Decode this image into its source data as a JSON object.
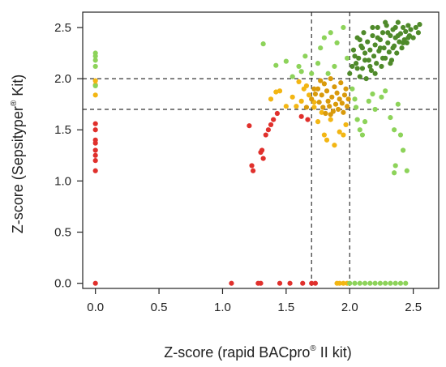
{
  "chart_data": {
    "type": "scatter",
    "xlabel": {
      "before": "Z-score (rapid BACpro",
      "sup": "®",
      "after": " II kit)"
    },
    "ylabel": {
      "before": "Z-score (Sepsityper",
      "sup": "®",
      "after": " Kit)"
    },
    "xlim": [
      -0.1,
      2.7
    ],
    "ylim": [
      -0.05,
      2.65
    ],
    "x_ticks": [
      0.0,
      0.5,
      1.0,
      1.5,
      2.0,
      2.5
    ],
    "x_tick_labels": [
      "0.0",
      "0.5",
      "1.0",
      "1.5",
      "2.0",
      "2.5"
    ],
    "y_ticks": [
      0.0,
      0.5,
      1.0,
      1.5,
      2.0,
      2.5
    ],
    "y_tick_labels": [
      "0.0",
      "0.5",
      "1.0",
      "1.5",
      "2.0",
      "2.5"
    ],
    "reference_lines": {
      "vertical": [
        1.7,
        2.0
      ],
      "horizontal": [
        1.7,
        2.0
      ],
      "style": "dashed"
    },
    "grid": false,
    "colors": {
      "red": "#e0302c",
      "orange": "#f3b613",
      "dark_orange": "#d99a0b",
      "light_green": "#8dd35a",
      "dark_green": "#4f8a2a"
    },
    "series": [
      {
        "color": "#e0302c",
        "points": [
          [
            0.0,
            1.56
          ],
          [
            0.0,
            1.5
          ],
          [
            0.0,
            1.4
          ],
          [
            0.0,
            1.37
          ],
          [
            0.0,
            1.3
          ],
          [
            0.0,
            1.25
          ],
          [
            0.0,
            1.2
          ],
          [
            0.0,
            1.1
          ],
          [
            0.0,
            0.0
          ],
          [
            1.07,
            0.0
          ],
          [
            1.21,
            1.54
          ],
          [
            1.23,
            1.15
          ],
          [
            1.24,
            1.1
          ],
          [
            1.28,
            0.0
          ],
          [
            1.3,
            1.28
          ],
          [
            1.3,
            0.0
          ],
          [
            1.31,
            1.3
          ],
          [
            1.32,
            1.22
          ],
          [
            1.34,
            1.45
          ],
          [
            1.36,
            1.5
          ],
          [
            1.38,
            1.55
          ],
          [
            1.4,
            1.6
          ],
          [
            1.43,
            1.66
          ],
          [
            1.45,
            0.0
          ],
          [
            1.53,
            0.0
          ],
          [
            1.62,
            1.63
          ],
          [
            1.63,
            0.0
          ],
          [
            1.67,
            1.6
          ],
          [
            1.7,
            0.0
          ],
          [
            1.73,
            0.0
          ]
        ]
      },
      {
        "color": "#f3b613",
        "points": [
          [
            0.0,
            1.98
          ],
          [
            0.0,
            1.94
          ],
          [
            0.0,
            1.84
          ],
          [
            1.38,
            1.8
          ],
          [
            1.42,
            1.87
          ],
          [
            1.45,
            1.88
          ],
          [
            1.5,
            1.73
          ],
          [
            1.55,
            1.82
          ],
          [
            1.58,
            1.73
          ],
          [
            1.6,
            1.97
          ],
          [
            1.62,
            1.78
          ],
          [
            1.64,
            1.9
          ],
          [
            1.66,
            1.93
          ],
          [
            1.68,
            1.84
          ],
          [
            1.72,
            1.77
          ],
          [
            1.72,
            1.72
          ],
          [
            1.75,
            1.58
          ],
          [
            1.78,
            1.67
          ],
          [
            1.8,
            1.45
          ],
          [
            1.82,
            1.4
          ],
          [
            1.85,
            1.6
          ],
          [
            1.88,
            1.35
          ],
          [
            1.92,
            1.48
          ],
          [
            1.95,
            1.45
          ],
          [
            1.97,
            1.55
          ],
          [
            1.9,
            0.0
          ],
          [
            1.92,
            0.0
          ],
          [
            1.95,
            0.0
          ],
          [
            1.98,
            0.0
          ]
        ]
      },
      {
        "color": "#d99a0b",
        "points": [
          [
            1.66,
            1.72
          ],
          [
            1.7,
            1.8
          ],
          [
            1.73,
            1.85
          ],
          [
            1.75,
            1.9
          ],
          [
            1.76,
            1.77
          ],
          [
            1.78,
            1.84
          ],
          [
            1.79,
            1.72
          ],
          [
            1.8,
            1.95
          ],
          [
            1.81,
            1.66
          ],
          [
            1.82,
            1.88
          ],
          [
            1.83,
            1.78
          ],
          [
            1.84,
            1.73
          ],
          [
            1.85,
            2.0
          ],
          [
            1.86,
            1.82
          ],
          [
            1.87,
            1.68
          ],
          [
            1.88,
            1.92
          ],
          [
            1.89,
            1.75
          ],
          [
            1.9,
            1.86
          ],
          [
            1.91,
            1.7
          ],
          [
            1.92,
            1.8
          ],
          [
            1.93,
            1.96
          ],
          [
            1.94,
            1.76
          ],
          [
            1.95,
            1.67
          ],
          [
            1.96,
            1.84
          ],
          [
            1.97,
            1.9
          ],
          [
            1.98,
            1.73
          ],
          [
            1.99,
            1.8
          ],
          [
            1.85,
            1.65
          ],
          [
            1.77,
            1.98
          ],
          [
            1.72,
            1.9
          ]
        ]
      },
      {
        "color": "#8dd35a",
        "points": [
          [
            0.0,
            2.25
          ],
          [
            0.0,
            2.22
          ],
          [
            0.0,
            2.18
          ],
          [
            0.0,
            2.12
          ],
          [
            0.0,
            1.93
          ],
          [
            1.32,
            2.34
          ],
          [
            1.42,
            2.13
          ],
          [
            1.5,
            2.17
          ],
          [
            1.55,
            2.02
          ],
          [
            1.6,
            2.12
          ],
          [
            1.62,
            2.07
          ],
          [
            1.65,
            2.22
          ],
          [
            1.7,
            2.05
          ],
          [
            1.75,
            2.15
          ],
          [
            1.77,
            2.3
          ],
          [
            1.8,
            2.4
          ],
          [
            1.85,
            2.45
          ],
          [
            1.9,
            2.35
          ],
          [
            1.95,
            2.5
          ],
          [
            1.98,
            2.2
          ],
          [
            1.83,
            2.05
          ],
          [
            1.88,
            2.12
          ],
          [
            2.02,
            1.9
          ],
          [
            2.04,
            1.8
          ],
          [
            2.05,
            1.72
          ],
          [
            2.06,
            1.6
          ],
          [
            2.08,
            1.5
          ],
          [
            2.1,
            1.45
          ],
          [
            2.12,
            1.58
          ],
          [
            2.15,
            1.78
          ],
          [
            2.18,
            1.85
          ],
          [
            2.2,
            1.7
          ],
          [
            2.25,
            1.82
          ],
          [
            2.28,
            1.88
          ],
          [
            2.32,
            1.62
          ],
          [
            2.35,
            1.5
          ],
          [
            2.38,
            1.75
          ],
          [
            2.4,
            1.45
          ],
          [
            2.42,
            1.3
          ],
          [
            2.45,
            1.1
          ],
          [
            2.35,
            1.08
          ],
          [
            2.36,
            1.15
          ],
          [
            2.0,
            0.0
          ],
          [
            2.04,
            0.0
          ],
          [
            2.08,
            0.0
          ],
          [
            2.12,
            0.0
          ],
          [
            2.16,
            0.0
          ],
          [
            2.2,
            0.0
          ],
          [
            2.24,
            0.0
          ],
          [
            2.28,
            0.0
          ],
          [
            2.32,
            0.0
          ],
          [
            2.36,
            0.0
          ],
          [
            2.4,
            0.0
          ],
          [
            2.44,
            0.0
          ]
        ]
      },
      {
        "color": "#4f8a2a",
        "points": [
          [
            2.0,
            2.05
          ],
          [
            2.02,
            2.12
          ],
          [
            2.03,
            2.28
          ],
          [
            2.05,
            2.15
          ],
          [
            2.06,
            2.4
          ],
          [
            2.07,
            2.2
          ],
          [
            2.08,
            2.02
          ],
          [
            2.09,
            2.32
          ],
          [
            2.1,
            2.1
          ],
          [
            2.11,
            2.45
          ],
          [
            2.12,
            2.25
          ],
          [
            2.13,
            2.0
          ],
          [
            2.14,
            2.36
          ],
          [
            2.15,
            2.18
          ],
          [
            2.16,
            2.28
          ],
          [
            2.17,
            2.08
          ],
          [
            2.18,
            2.42
          ],
          [
            2.19,
            2.22
          ],
          [
            2.2,
            2.33
          ],
          [
            2.21,
            2.15
          ],
          [
            2.22,
            2.5
          ],
          [
            2.23,
            2.27
          ],
          [
            2.24,
            2.38
          ],
          [
            2.25,
            2.12
          ],
          [
            2.26,
            2.45
          ],
          [
            2.27,
            2.3
          ],
          [
            2.28,
            2.2
          ],
          [
            2.29,
            2.52
          ],
          [
            2.3,
            2.35
          ],
          [
            2.31,
            2.26
          ],
          [
            2.32,
            2.42
          ],
          [
            2.33,
            2.18
          ],
          [
            2.34,
            2.48
          ],
          [
            2.35,
            2.32
          ],
          [
            2.36,
            2.4
          ],
          [
            2.37,
            2.25
          ],
          [
            2.38,
            2.55
          ],
          [
            2.39,
            2.36
          ],
          [
            2.4,
            2.44
          ],
          [
            2.41,
            2.3
          ],
          [
            2.42,
            2.5
          ],
          [
            2.43,
            2.38
          ],
          [
            2.44,
            2.46
          ],
          [
            2.45,
            2.35
          ],
          [
            2.46,
            2.52
          ],
          [
            2.47,
            2.42
          ],
          [
            2.48,
            2.48
          ],
          [
            2.5,
            2.4
          ],
          [
            2.52,
            2.5
          ],
          [
            2.54,
            2.45
          ],
          [
            2.55,
            2.53
          ],
          [
            2.04,
            2.22
          ],
          [
            2.1,
            2.3
          ],
          [
            2.16,
            2.12
          ],
          [
            2.22,
            2.4
          ],
          [
            2.26,
            2.2
          ],
          [
            2.3,
            2.45
          ],
          [
            2.34,
            2.3
          ],
          [
            2.38,
            2.42
          ],
          [
            2.42,
            2.35
          ],
          [
            2.08,
            2.38
          ],
          [
            2.18,
            2.5
          ],
          [
            2.28,
            2.55
          ],
          [
            2.12,
            2.18
          ],
          [
            2.24,
            2.3
          ],
          [
            2.36,
            2.5
          ],
          [
            2.46,
            2.4
          ],
          [
            2.2,
            2.05
          ],
          [
            2.32,
            2.15
          ],
          [
            2.06,
            2.1
          ]
        ]
      }
    ]
  }
}
